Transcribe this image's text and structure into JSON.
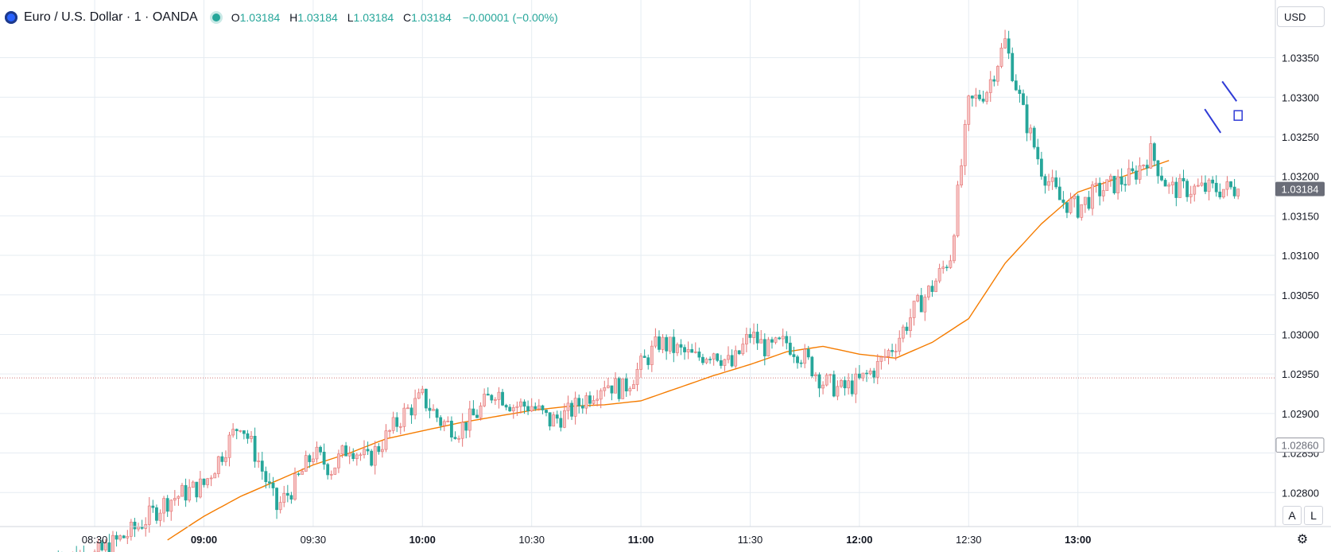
{
  "legend": {
    "symbol": "Euro / U.S. Dollar · 1 · OANDA",
    "open_label": "O",
    "open": "1.03184",
    "high_label": "H",
    "high": "1.03184",
    "low_label": "L",
    "low": "1.03184",
    "close_label": "C",
    "close": "1.03184",
    "change": "−0.00001 (−0.00%)"
  },
  "currency_label": "USD",
  "auto_scale_label": "A",
  "log_scale_label": "L",
  "colors": {
    "up": "#ef9a9a",
    "down": "#26a69a",
    "ma": "#f57c00",
    "grid": "#e6ecf2",
    "price_tag": "#6a6d78",
    "drawing": "#2f3bd6"
  },
  "chart_data": {
    "type": "candlestick",
    "x_tick_labels": [
      "08:30",
      "09:00",
      "09:30",
      "10:00",
      "10:30",
      "11:00",
      "11:30",
      "12:00",
      "12:30",
      "13:00"
    ],
    "x_tick_times": [
      "08:30",
      "09:00",
      "09:30",
      "10:00",
      "10:30",
      "11:00",
      "11:30",
      "12:00",
      "12:30",
      "13:00"
    ],
    "x_range": [
      "08:04",
      "13:54"
    ],
    "y_tick_labels": [
      "1.03350",
      "1.03300",
      "1.03250",
      "1.03200",
      "1.03150",
      "1.03100",
      "1.03050",
      "1.03000",
      "1.02950",
      "1.02900",
      "1.02850",
      "1.02800"
    ],
    "y_ticks": [
      1.0335,
      1.033,
      1.0325,
      1.032,
      1.0315,
      1.031,
      1.0305,
      1.03,
      1.0295,
      1.029,
      1.0285,
      1.028
    ],
    "y_range": [
      1.02757,
      1.03423
    ],
    "last_price": 1.03184,
    "last_price_label": "1.03184",
    "cursor_price_label": "1.02860",
    "cursor_price": 1.0286,
    "dotted_line_price": 1.02945,
    "series": [
      {
        "name": "EUR/USD 1m",
        "anchor_times": [
          "08:30",
          "08:40",
          "08:50",
          "09:00",
          "09:05",
          "09:10",
          "09:15",
          "09:20",
          "09:25",
          "09:30",
          "09:35",
          "09:40",
          "09:45",
          "09:50",
          "09:55",
          "10:00",
          "10:05",
          "10:10",
          "10:15",
          "10:20",
          "10:25",
          "10:30",
          "10:35",
          "10:40",
          "10:45",
          "10:50",
          "10:55",
          "11:00",
          "11:05",
          "11:10",
          "11:15",
          "11:20",
          "11:25",
          "11:30",
          "11:35",
          "11:40",
          "11:45",
          "11:50",
          "11:55",
          "12:00",
          "12:05",
          "12:10",
          "12:15",
          "12:20",
          "12:25",
          "12:30",
          "12:35",
          "12:40",
          "12:45",
          "12:50",
          "12:55",
          "13:00",
          "13:05",
          "13:10",
          "13:15",
          "13:20",
          "13:25"
        ],
        "anchor_closes": [
          1.0272,
          1.0275,
          1.0279,
          1.0281,
          1.0285,
          1.0289,
          1.0284,
          1.0278,
          1.0281,
          1.0285,
          1.0283,
          1.0286,
          1.0284,
          1.0287,
          1.029,
          1.0292,
          1.0289,
          1.0288,
          1.029,
          1.0293,
          1.0291,
          1.0291,
          1.0289,
          1.029,
          1.0292,
          1.0294,
          1.0293,
          1.0296,
          1.0299,
          1.0298,
          1.0297,
          1.0298,
          1.0296,
          1.03,
          1.0298,
          1.0299,
          1.0297,
          1.0294,
          1.0293,
          1.0294,
          1.0296,
          1.0299,
          1.0303,
          1.0306,
          1.031,
          1.0329,
          1.0331,
          1.0337,
          1.0328,
          1.0321,
          1.0317,
          1.0316,
          1.0318,
          1.0319,
          1.032,
          1.0323,
          1.03184
        ]
      },
      {
        "name": "MA",
        "anchor_times": [
          "08:50",
          "09:00",
          "09:10",
          "09:20",
          "09:30",
          "09:40",
          "09:50",
          "10:00",
          "10:10",
          "10:20",
          "10:30",
          "10:40",
          "10:50",
          "11:00",
          "11:10",
          "11:20",
          "11:30",
          "11:40",
          "11:50",
          "12:00",
          "12:10",
          "12:20",
          "12:30",
          "12:40",
          "12:50",
          "13:00",
          "13:10",
          "13:20",
          "13:25"
        ],
        "anchor_values": [
          1.0274,
          1.0277,
          1.02795,
          1.02815,
          1.02835,
          1.0285,
          1.02868,
          1.02878,
          1.02888,
          1.02896,
          1.02904,
          1.02909,
          1.02911,
          1.02916,
          1.02932,
          1.02948,
          1.02962,
          1.02978,
          1.02985,
          1.02975,
          1.0297,
          1.0299,
          1.0302,
          1.0309,
          1.0314,
          1.0318,
          1.03196,
          1.03212,
          1.0322
        ]
      }
    ]
  }
}
